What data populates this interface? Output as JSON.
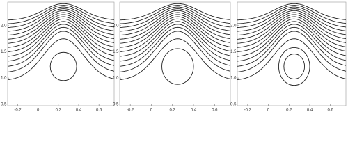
{
  "chart_data": [
    {
      "type": "contour",
      "xlim": [
        -0.3,
        0.75
      ],
      "ylim": [
        0.47,
        2.45
      ],
      "xticks": [
        -0.2,
        {
          "value": 0,
          "label": "0"
        },
        0.2,
        0.4,
        0.6
      ],
      "yticks": [
        0.5,
        {
          "value": 1,
          "label": "1.0"
        },
        1.5,
        {
          "value": 2,
          "label": "2.0"
        }
      ]
    },
    {
      "type": "contour",
      "xlim": [
        -0.3,
        0.75
      ],
      "ylim": [
        0.47,
        2.45
      ],
      "xticks": [
        -0.2,
        {
          "value": 0,
          "label": "0"
        },
        0.2,
        0.4,
        0.6
      ],
      "yticks": [
        0.5,
        {
          "value": 1,
          "label": "1.0"
        },
        1.5,
        {
          "value": 2,
          "label": "2.0"
        }
      ]
    },
    {
      "type": "contour",
      "xlim": [
        -0.3,
        0.75
      ],
      "ylim": [
        0.47,
        2.45
      ],
      "xticks": [
        -0.2,
        {
          "value": 0,
          "label": "0"
        },
        0.2,
        0.4,
        0.6
      ],
      "yticks": [
        0.5,
        {
          "value": 1,
          "label": "1.0"
        },
        1.5,
        {
          "value": 2,
          "label": "2.0"
        }
      ]
    }
  ]
}
